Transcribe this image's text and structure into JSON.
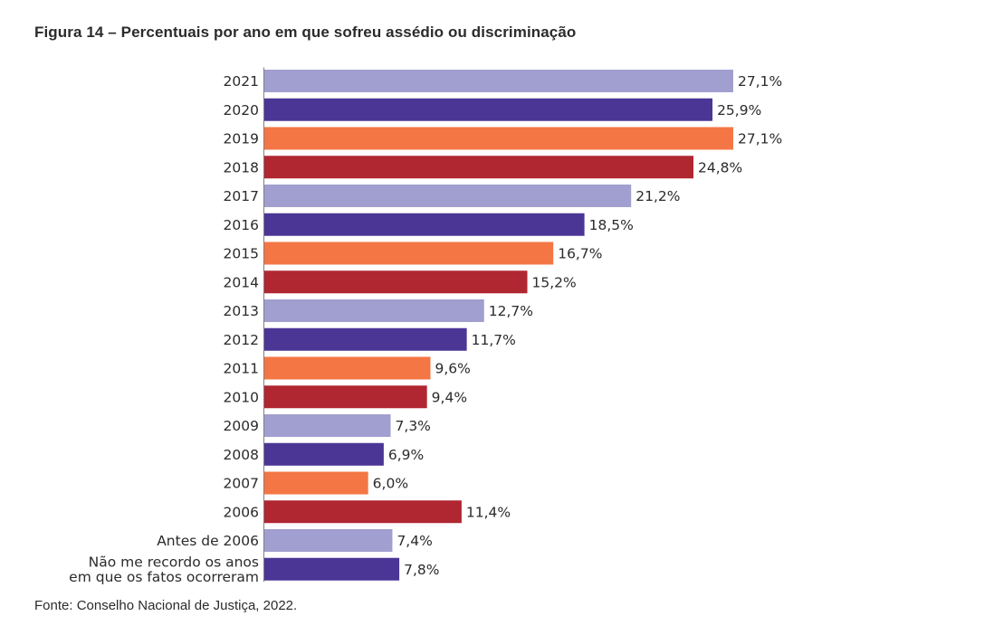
{
  "figure": {
    "title": "Figura 14 – Percentuais por ano em que sofreu assédio ou discriminação",
    "source": "Fonte: Conselho Nacional de Justiça, 2022."
  },
  "chart_data": {
    "type": "bar",
    "orientation": "horizontal",
    "title": "Figura 14 – Percentuais por ano em que sofreu assédio ou discriminação",
    "xlabel": "",
    "ylabel": "",
    "unit": "%",
    "grid": false,
    "legend": "none",
    "xlim": [
      0,
      27.1
    ],
    "categories": [
      [
        "2021"
      ],
      [
        "2020"
      ],
      [
        "2019"
      ],
      [
        "2018"
      ],
      [
        "2017"
      ],
      [
        "2016"
      ],
      [
        "2015"
      ],
      [
        "2014"
      ],
      [
        "2013"
      ],
      [
        "2012"
      ],
      [
        "2011"
      ],
      [
        "2010"
      ],
      [
        "2009"
      ],
      [
        "2008"
      ],
      [
        "2007"
      ],
      [
        "2006"
      ],
      [
        "Antes de 2006"
      ],
      [
        "Não me recordo os anos",
        "em que os fatos ocorreram"
      ]
    ],
    "values": [
      27.1,
      25.9,
      27.1,
      24.8,
      21.2,
      18.5,
      16.7,
      15.2,
      12.7,
      11.7,
      9.6,
      9.4,
      7.3,
      6.9,
      6.0,
      11.4,
      7.4,
      7.8
    ],
    "value_labels": [
      "27,1%",
      "25,9%",
      "27,1%",
      "24,8%",
      "21,2%",
      "18,5%",
      "16,7%",
      "15,2%",
      "12,7%",
      "11,7%",
      "9,6%",
      "9,4%",
      "7,3%",
      "6,9%",
      "6,0%",
      "11,4%",
      "7,4%",
      "7,8%"
    ],
    "colors": [
      "#a19fcf",
      "#4b3696",
      "#f47644",
      "#b02631",
      "#a19fcf",
      "#4b3696",
      "#f47644",
      "#b02631",
      "#a19fcf",
      "#4b3696",
      "#f47644",
      "#b02631",
      "#a19fcf",
      "#4b3696",
      "#f47644",
      "#b02631",
      "#a19fcf",
      "#4b3696"
    ],
    "axis_color": "#7f7f7f"
  }
}
